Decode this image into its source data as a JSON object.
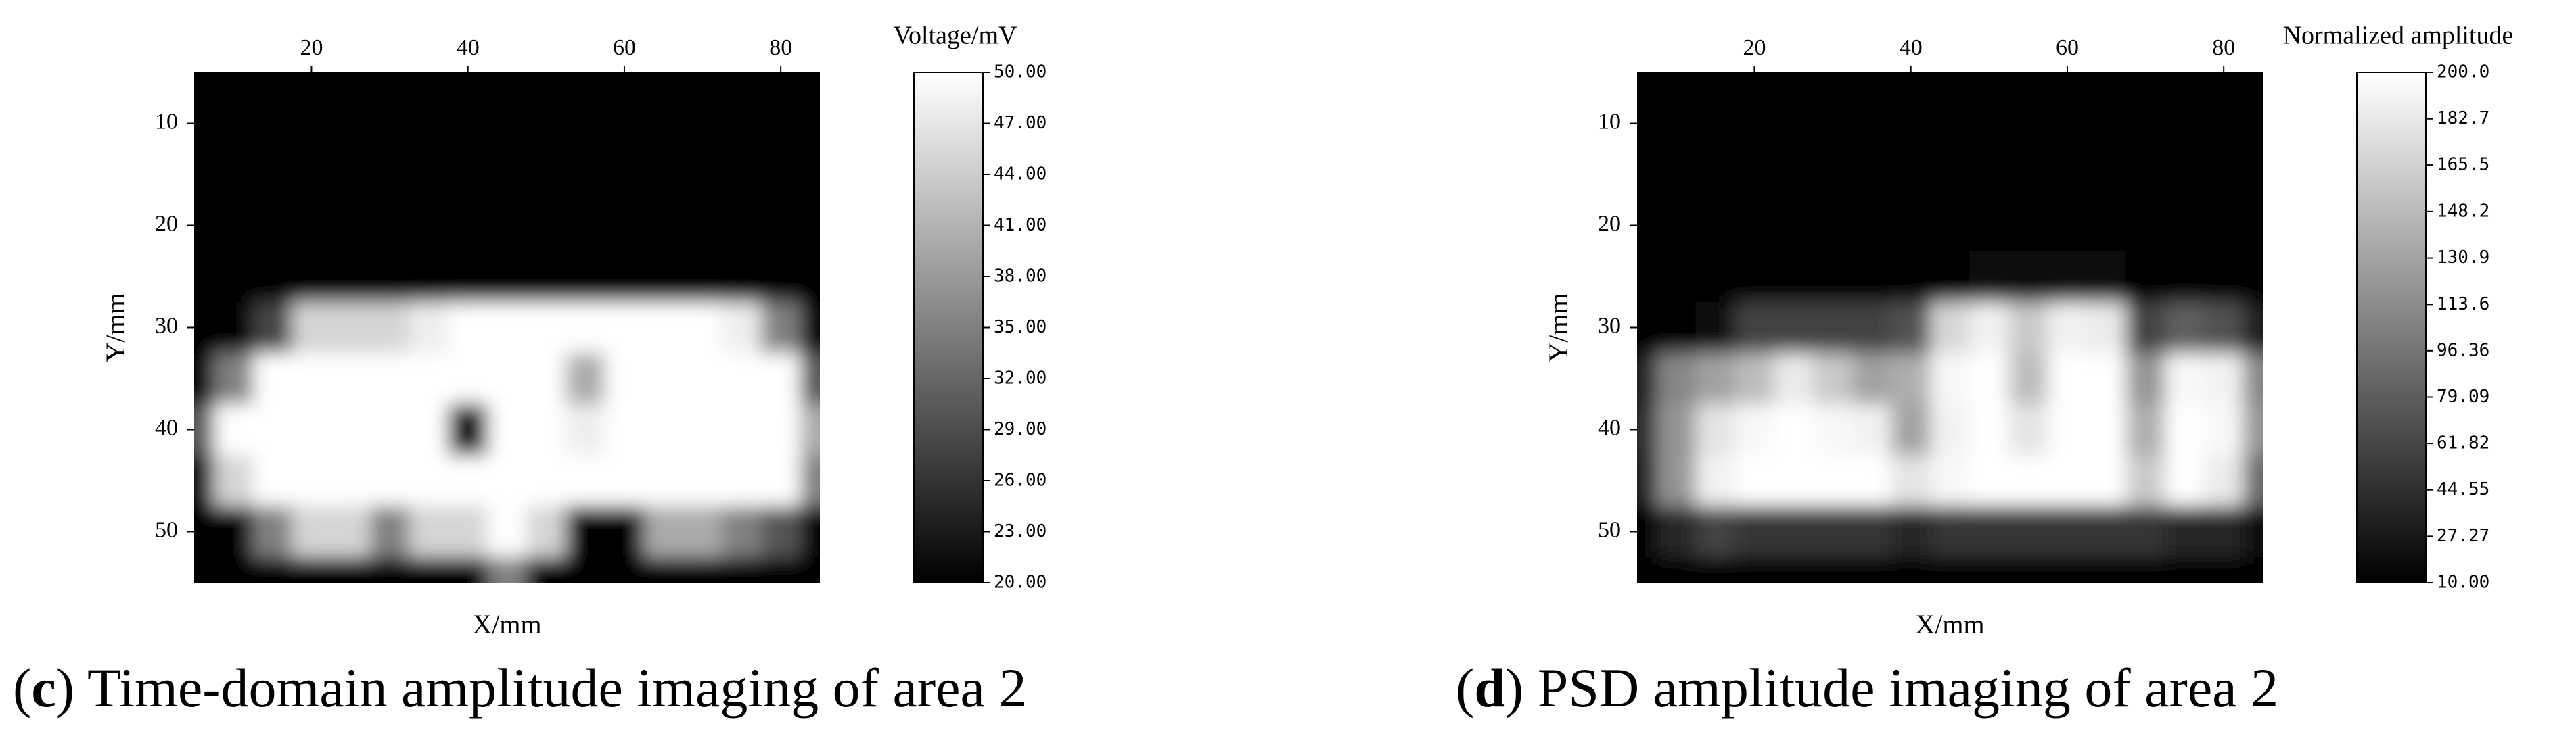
{
  "chart_data": [
    {
      "type": "heatmap",
      "colorbar_label": "Voltage/mV",
      "xlabel": "X/mm",
      "ylabel": "Y/mm",
      "caption": [
        "(",
        "c",
        ") Time-domain amplitude imaging of area 2"
      ],
      "colormap": "gray",
      "x": [
        5,
        10,
        15,
        20,
        25,
        30,
        35,
        40,
        45,
        50,
        55,
        60,
        65,
        70,
        75,
        80,
        85
      ],
      "y": [
        5,
        10,
        15,
        20,
        25,
        30,
        35,
        40,
        45,
        50,
        55
      ],
      "values": [
        [
          20,
          20,
          20,
          20,
          20,
          20,
          20,
          20,
          20,
          20,
          20,
          20,
          20,
          20,
          20,
          20,
          20
        ],
        [
          20,
          20,
          20,
          20,
          20,
          20,
          20,
          20,
          20,
          20,
          20,
          20,
          20,
          20,
          20,
          20,
          20
        ],
        [
          20,
          20,
          20,
          20,
          20,
          20,
          20,
          20,
          20,
          20,
          20,
          20,
          20,
          20,
          20,
          20,
          20
        ],
        [
          20,
          20,
          20,
          20,
          20,
          20,
          20,
          20,
          20,
          20,
          20,
          20,
          20,
          20,
          20,
          20,
          20
        ],
        [
          20,
          20,
          20,
          20,
          20,
          20,
          20,
          20,
          20,
          20,
          20,
          20,
          20,
          20,
          20,
          20,
          20
        ],
        [
          20,
          20,
          28,
          45,
          45,
          45,
          48,
          50,
          50,
          50,
          50,
          50,
          50,
          50,
          48,
          35,
          20
        ],
        [
          20,
          35,
          50,
          50,
          50,
          50,
          50,
          50,
          50,
          50,
          40,
          50,
          50,
          50,
          50,
          50,
          30
        ],
        [
          30,
          50,
          50,
          50,
          50,
          50,
          50,
          20,
          50,
          50,
          48,
          50,
          50,
          50,
          50,
          50,
          40
        ],
        [
          20,
          45,
          50,
          50,
          50,
          50,
          50,
          50,
          50,
          50,
          50,
          50,
          50,
          50,
          50,
          50,
          35
        ],
        [
          20,
          20,
          35,
          45,
          45,
          35,
          45,
          45,
          50,
          45,
          20,
          20,
          40,
          40,
          35,
          30,
          20
        ],
        [
          20,
          20,
          20,
          20,
          20,
          20,
          20,
          20,
          35,
          20,
          20,
          20,
          20,
          20,
          20,
          20,
          20
        ]
      ],
      "xlim": [
        5,
        85
      ],
      "xticks": [
        20,
        40,
        60,
        80
      ],
      "ylim": [
        5,
        55
      ],
      "yticks": [
        10,
        20,
        30,
        40,
        50
      ],
      "clim": [
        20,
        50
      ],
      "cticks": [
        {
          "value": 50,
          "label": "50.00"
        },
        {
          "value": 47,
          "label": "47.00"
        },
        {
          "value": 44,
          "label": "44.00"
        },
        {
          "value": 41,
          "label": "41.00"
        },
        {
          "value": 38,
          "label": "38.00"
        },
        {
          "value": 35,
          "label": "35.00"
        },
        {
          "value": 32,
          "label": "32.00"
        },
        {
          "value": 29,
          "label": "29.00"
        },
        {
          "value": 26,
          "label": "26.00"
        },
        {
          "value": 23,
          "label": "23.00"
        },
        {
          "value": 20,
          "label": "20.00"
        }
      ]
    },
    {
      "type": "heatmap",
      "colorbar_label": "Normalized amplitude",
      "xlabel": "X/mm",
      "ylabel": "Y/mm",
      "caption": [
        "(",
        "d",
        ") PSD amplitude imaging of area 2"
      ],
      "colormap": "gray",
      "x": [
        5,
        10,
        15,
        20,
        25,
        30,
        35,
        40,
        45,
        50,
        55,
        60,
        65,
        70,
        75,
        80,
        85
      ],
      "y": [
        5,
        10,
        15,
        20,
        25,
        30,
        35,
        40,
        45,
        50,
        55
      ],
      "values": [
        [
          10,
          10,
          10,
          10,
          10,
          10,
          10,
          10,
          10,
          10,
          10,
          10,
          10,
          10,
          10,
          10,
          10
        ],
        [
          10,
          10,
          10,
          10,
          10,
          10,
          10,
          10,
          10,
          10,
          10,
          10,
          10,
          10,
          10,
          10,
          10
        ],
        [
          10,
          10,
          10,
          10,
          10,
          10,
          10,
          10,
          10,
          10,
          10,
          10,
          10,
          10,
          10,
          10,
          10
        ],
        [
          10,
          10,
          10,
          10,
          10,
          10,
          10,
          10,
          10,
          10,
          10,
          10,
          10,
          10,
          10,
          10,
          10
        ],
        [
          10,
          10,
          10,
          10,
          10,
          10,
          10,
          10,
          10,
          20,
          20,
          20,
          20,
          10,
          10,
          10,
          10
        ],
        [
          10,
          10,
          20,
          60,
          60,
          60,
          60,
          70,
          170,
          190,
          160,
          190,
          185,
          60,
          80,
          70,
          30
        ],
        [
          30,
          110,
          130,
          150,
          185,
          160,
          130,
          140,
          195,
          200,
          150,
          200,
          200,
          120,
          195,
          190,
          110
        ],
        [
          40,
          120,
          180,
          195,
          200,
          195,
          190,
          130,
          190,
          200,
          180,
          200,
          200,
          140,
          200,
          195,
          120
        ],
        [
          30,
          120,
          190,
          200,
          200,
          200,
          200,
          180,
          195,
          200,
          200,
          200,
          200,
          160,
          200,
          185,
          90
        ],
        [
          10,
          40,
          60,
          50,
          50,
          50,
          50,
          40,
          50,
          50,
          50,
          50,
          50,
          50,
          40,
          40,
          20
        ],
        [
          10,
          10,
          10,
          10,
          10,
          10,
          10,
          10,
          10,
          10,
          10,
          10,
          10,
          10,
          10,
          10,
          10
        ]
      ],
      "xlim": [
        5,
        85
      ],
      "xticks": [
        20,
        40,
        60,
        80
      ],
      "ylim": [
        5,
        55
      ],
      "yticks": [
        10,
        20,
        30,
        40,
        50
      ],
      "clim": [
        10,
        200
      ],
      "cticks": [
        {
          "value": 200,
          "label": "200.0"
        },
        182.7,
        165.5,
        148.2,
        130.9,
        113.6,
        96.36,
        79.09,
        61.82,
        44.55,
        27.27,
        {
          "value": 10,
          "label": "10.00"
        }
      ]
    }
  ]
}
